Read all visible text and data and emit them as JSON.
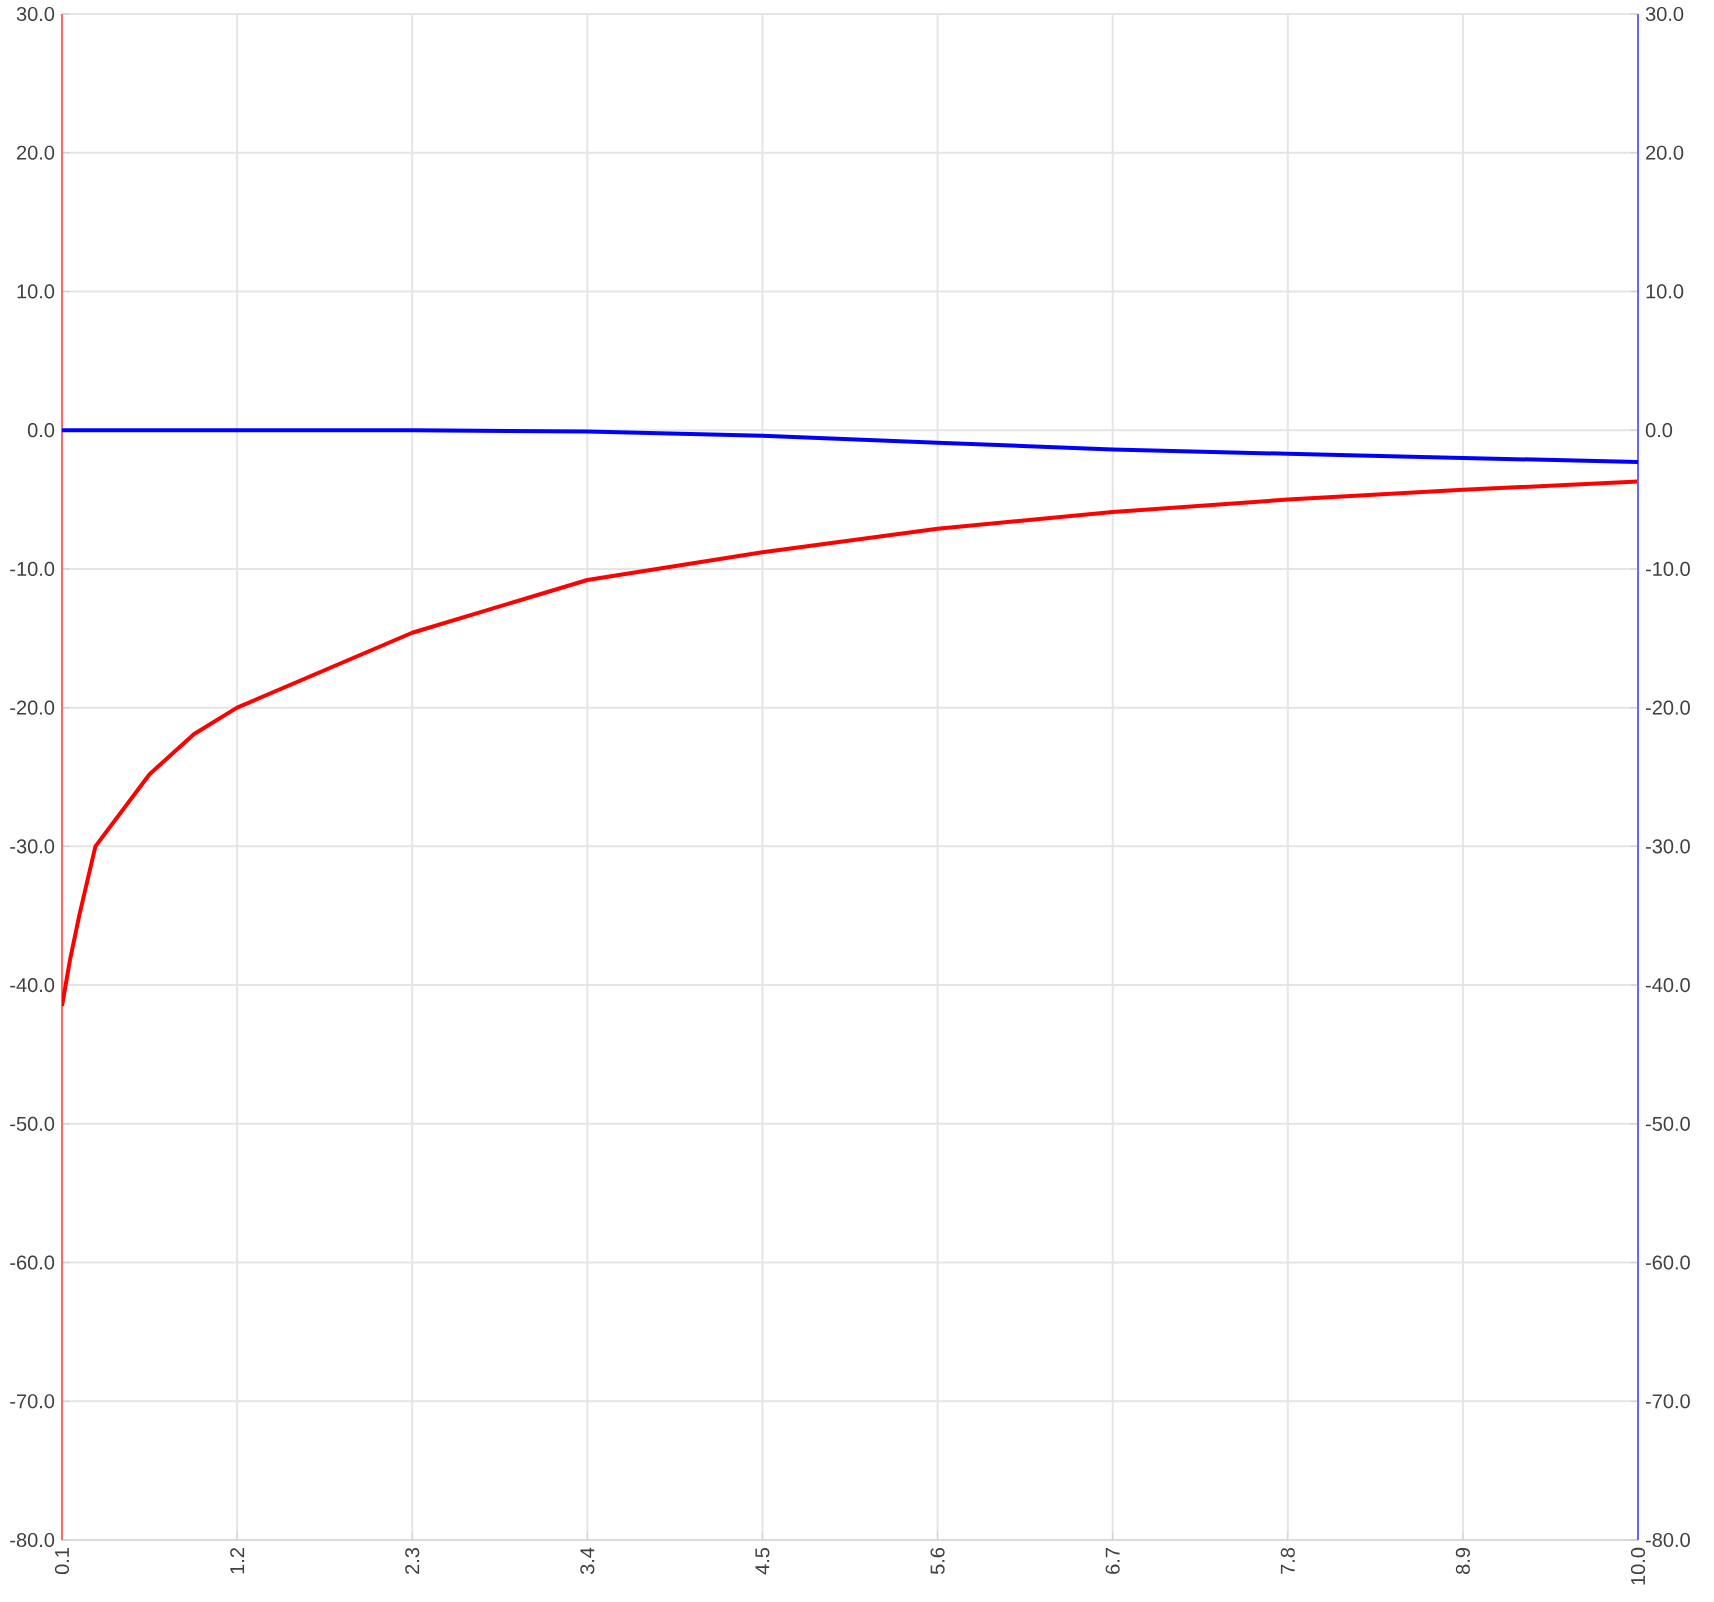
{
  "chart_data": {
    "type": "line",
    "series": [
      {
        "color": "#ff0000",
        "x": [
          0.1,
          0.15,
          0.21,
          0.31,
          0.65,
          0.93,
          1.2,
          2.3,
          3.4,
          4.5,
          5.6,
          6.7,
          7.8,
          8.9,
          10.0
        ],
        "values": [
          -41.5,
          -38.2,
          -34.9,
          -30.0,
          -24.8,
          -21.9,
          -20.0,
          -14.6,
          -10.8,
          -8.8,
          -7.1,
          -5.9,
          -5.0,
          -4.3,
          -3.7
        ]
      },
      {
        "color": "#0000ff",
        "axis": "y2",
        "x": [
          0.1,
          1.2,
          2.3,
          3.4,
          4.5,
          5.6,
          6.7,
          7.8,
          8.9,
          10.0
        ],
        "values": [
          0.0,
          0.0,
          0.0,
          -0.1,
          -0.4,
          -0.9,
          -1.4,
          -1.7,
          -2.0,
          -2.3
        ]
      }
    ],
    "xlim": [
      0.1,
      10.0
    ],
    "xticks": [
      0.1,
      1.2,
      2.3,
      3.4,
      4.5,
      5.6,
      6.7,
      7.8,
      8.9,
      {
        "value": 10.0,
        "label": "10.0"
      }
    ],
    "ylim": [
      -80,
      30
    ],
    "yticks": [
      {
        "value": -80,
        "label": "-80.0"
      },
      {
        "value": -70,
        "label": "-70.0"
      },
      {
        "value": -60,
        "label": "-60.0"
      },
      {
        "value": -50,
        "label": "-50.0"
      },
      {
        "value": -40,
        "label": "-40.0"
      },
      {
        "value": -30,
        "label": "-30.0"
      },
      {
        "value": -20,
        "label": "-20.0"
      },
      {
        "value": -10,
        "label": "-10.0"
      },
      {
        "value": 0,
        "label": "0.0"
      },
      {
        "value": 10,
        "label": "10.0"
      },
      {
        "value": 20,
        "label": "20.0"
      },
      {
        "value": 30,
        "label": "30.0"
      }
    ],
    "y2lim": [
      -80,
      30
    ],
    "y2ticks": [
      {
        "value": -80,
        "label": "-80.0"
      },
      {
        "value": -70,
        "label": "-70.0"
      },
      {
        "value": -60,
        "label": "-60.0"
      },
      {
        "value": -50,
        "label": "-50.0"
      },
      {
        "value": -40,
        "label": "-40.0"
      },
      {
        "value": -30,
        "label": "-30.0"
      },
      {
        "value": -20,
        "label": "-20.0"
      },
      {
        "value": -10,
        "label": "-10.0"
      },
      {
        "value": 0,
        "label": "0.0"
      },
      {
        "value": 10,
        "label": "10.0"
      },
      {
        "value": 20,
        "label": "20.0"
      },
      {
        "value": 30,
        "label": "30.0"
      }
    ],
    "grid": true,
    "marker": "none",
    "line_style": "solid"
  }
}
